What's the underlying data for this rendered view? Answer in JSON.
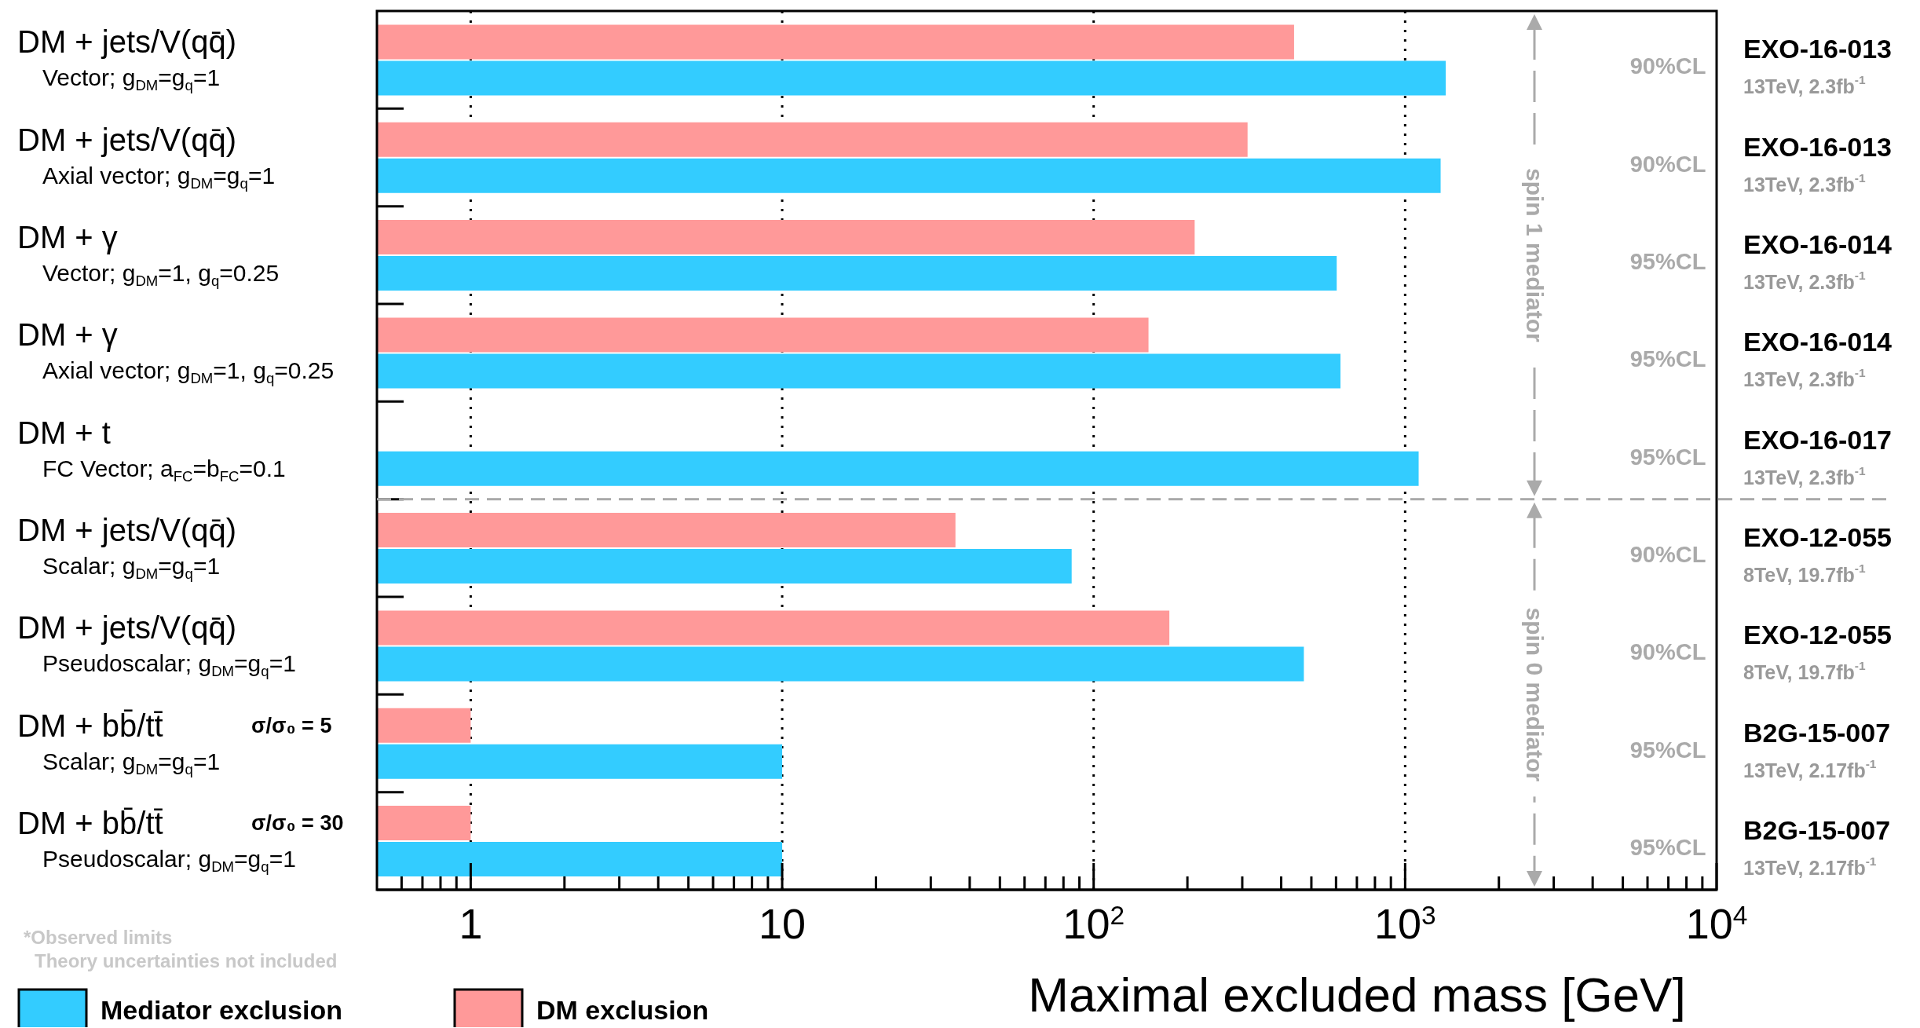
{
  "chart_data": {
    "type": "bar",
    "orientation": "horizontal",
    "log": "x",
    "grid": "x",
    "legend": "bottom left",
    "xlabel": "Maximal excluded mass [GeV]",
    "categories": [
      "DM + jets/V(qq̄)\nVector; g$_{DM}$=g$_{q}$=1",
      "DM + jets/V(qq̄)\nAxial vector; g$_{DM}$=g$_{q}$=1",
      "DM + γ\nVector; g$_{DM}$=1, g$_{q}$=0.25",
      "DM + γ\nAxial vector; g$_{DM}$=1, g$_{q}$=0.25",
      "DM + t\nFC Vector; a$_{FC}$=b$_{FC}$=0.1",
      "DM + jets/V(qq̄)\nScalar; g$_{DM}$=g$_{q}$=1",
      "DM + jets/V(qq̄)\nPseudoscalar; g$_{DM}$=g$_{q}$=1",
      "DM + bb̄/tt̄\tσ/σ₀ = 5\nScalar; g$_{DM}$=g$_{q}$=1",
      "DM + bb̄/tt̄\tσ/σ₀ = 30\nPseudoscalar; g$_{DM}$=g$_{q}$=1"
    ],
    "series": [
      {
        "name": "DM exclusion",
        "color": "#ff9999",
        "values": [
          440,
          312,
          211,
          150,
          null,
          36,
          175,
          1,
          1
        ]
      },
      {
        "name": "Mediator exclusion",
        "color": "#33ccff",
        "values": [
          1350,
          1300,
          603,
          620,
          1105,
          85,
          473,
          10,
          10
        ]
      }
    ],
    "xlim": [
      0.5,
      10000
    ],
    "xticks": [
      1,
      10,
      {
        "value": 100,
        "label": "10$^{2}$"
      },
      {
        "value": 1000,
        "label": "10$^{3}$"
      },
      {
        "value": 10000,
        "label": "10$^{4}$"
      }
    ],
    "annotations": [
      "90%CL",
      "EXO-16-013",
      "13TeV, 2.3fb$^{-1}$",
      "90%CL",
      "EXO-16-013",
      "13TeV, 2.3fb$^{-1}$",
      "95%CL",
      "EXO-16-014",
      "13TeV, 2.3fb$^{-1}$",
      "95%CL",
      "EXO-16-014",
      "13TeV, 2.3fb$^{-1}$",
      "95%CL",
      "EXO-16-017",
      "13TeV, 2.3fb$^{-1}$",
      "90%CL",
      "EXO-12-055",
      "8TeV, 19.7fb$^{-1}$",
      "90%CL",
      "EXO-12-055",
      "8TeV, 19.7fb$^{-1}$",
      "95%CL",
      "B2G-15-007",
      "13TeV, 2.17fb$^{-1}$",
      "95%CL",
      "B2G-15-007",
      "13TeV, 2.17fb$^{-1}$",
      "spin 1 mediator",
      "spin 0 mediator",
      "*Observed limits",
      "Theory uncertainties not included"
    ]
  }
}
